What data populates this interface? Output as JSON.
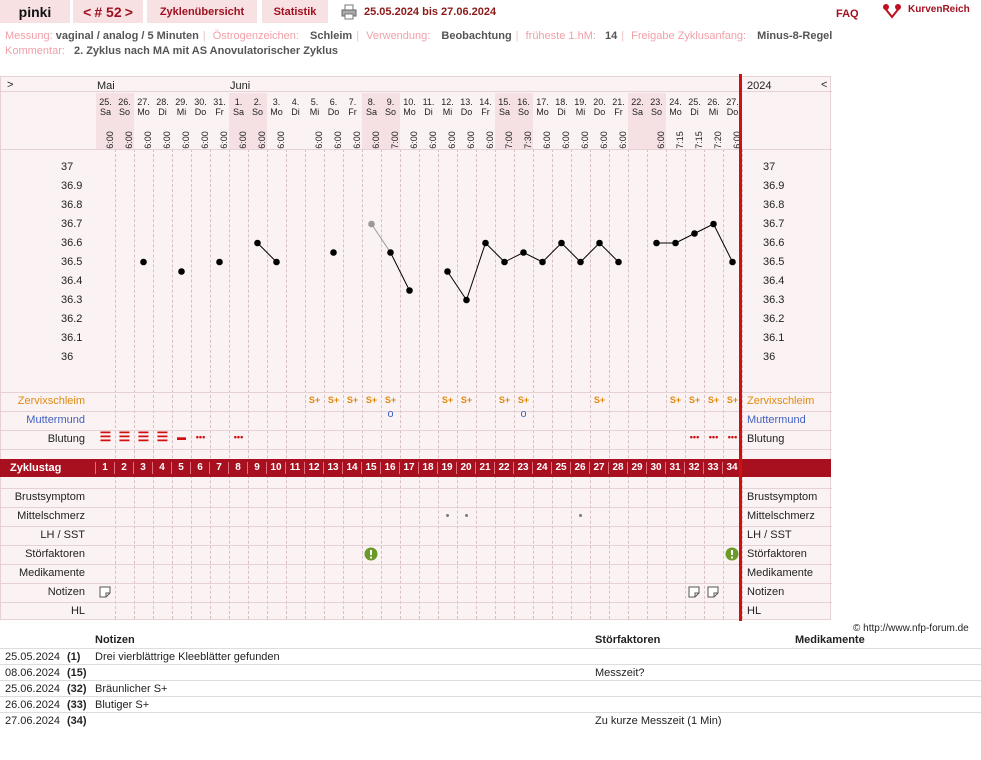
{
  "header": {
    "user": "pinki",
    "cycle_prev": "<",
    "cycle_label": "# 52",
    "cycle_next": ">",
    "tab_overview": "Zyklenübersicht",
    "tab_stats": "Statistik",
    "print_icon": "printer-icon",
    "date_range": "25.05.2024 bis 27.06.2024",
    "faq": "FAQ",
    "logo": "KurvenReich",
    "logo_icon": "kurvenreich-logo-icon"
  },
  "info": {
    "messung_label": "Messung:",
    "messung": "vaginal / analog / 5 Minuten",
    "oestro_label": "Östrogenzeichen:",
    "oestro": "Schleim",
    "verwendung_label": "Verwendung:",
    "verwendung": "Beobachtung",
    "fruehest_label": "früheste 1.hM:",
    "fruehest": "14",
    "freigabe_label": "Freigabe Zyklusanfang:",
    "freigabe": "Minus-8-Regel",
    "kommentar_label": "Kommentar:",
    "kommentar": "2. Zyklus nach MA mit AS  Anovulatorischer Zyklus"
  },
  "chart": {
    "nav_left": ">",
    "nav_right": "<",
    "year": "2024",
    "months": [
      {
        "label": "Mai",
        "day": 1
      },
      {
        "label": "Juni",
        "day": 8
      }
    ],
    "days": [
      {
        "d": "25.",
        "w": "Sa",
        "t": "6:00"
      },
      {
        "d": "26.",
        "w": "So",
        "t": "6:00"
      },
      {
        "d": "27.",
        "w": "Mo",
        "t": "6:00"
      },
      {
        "d": "28.",
        "w": "Di",
        "t": "6:00"
      },
      {
        "d": "29.",
        "w": "Mi",
        "t": "6:00"
      },
      {
        "d": "30.",
        "w": "Do",
        "t": "6:00"
      },
      {
        "d": "31.",
        "w": "Fr",
        "t": "6:00"
      },
      {
        "d": "1.",
        "w": "Sa",
        "t": "6:00"
      },
      {
        "d": "2.",
        "w": "So",
        "t": "6:00"
      },
      {
        "d": "3.",
        "w": "Mo",
        "t": "6:00"
      },
      {
        "d": "4.",
        "w": "Di",
        "t": ""
      },
      {
        "d": "5.",
        "w": "Mi",
        "t": "6:00"
      },
      {
        "d": "6.",
        "w": "Do",
        "t": "6:00"
      },
      {
        "d": "7.",
        "w": "Fr",
        "t": "6:00"
      },
      {
        "d": "8.",
        "w": "Sa",
        "t": "6:00"
      },
      {
        "d": "9.",
        "w": "So",
        "t": "7:00"
      },
      {
        "d": "10.",
        "w": "Mo",
        "t": "6:00"
      },
      {
        "d": "11.",
        "w": "Di",
        "t": "6:00"
      },
      {
        "d": "12.",
        "w": "Mi",
        "t": "6:00"
      },
      {
        "d": "13.",
        "w": "Do",
        "t": "6:00"
      },
      {
        "d": "14.",
        "w": "Fr",
        "t": "6:00"
      },
      {
        "d": "15.",
        "w": "Sa",
        "t": "7:00"
      },
      {
        "d": "16.",
        "w": "So",
        "t": "7:30"
      },
      {
        "d": "17.",
        "w": "Mo",
        "t": "6:00"
      },
      {
        "d": "18.",
        "w": "Di",
        "t": "6:00"
      },
      {
        "d": "19.",
        "w": "Mi",
        "t": "6:00"
      },
      {
        "d": "20.",
        "w": "Do",
        "t": "6:00"
      },
      {
        "d": "21.",
        "w": "Fr",
        "t": "6:00"
      },
      {
        "d": "22.",
        "w": "Sa",
        "t": ""
      },
      {
        "d": "23.",
        "w": "So",
        "t": "6:00"
      },
      {
        "d": "24.",
        "w": "Mo",
        "t": "7:15"
      },
      {
        "d": "25.",
        "w": "Di",
        "t": "7:15"
      },
      {
        "d": "26.",
        "w": "Mi",
        "t": "7:20"
      },
      {
        "d": "27.",
        "w": "Do",
        "t": "6:00"
      }
    ],
    "y_ticks": [
      "37",
      "36.9",
      "36.8",
      "36.7",
      "36.6",
      "36.5",
      "36.4",
      "36.3",
      "36.2",
      "36.1",
      "36"
    ],
    "temps": [
      null,
      null,
      36.5,
      null,
      36.45,
      null,
      36.5,
      null,
      36.6,
      36.5,
      null,
      null,
      36.55,
      null,
      36.7,
      36.55,
      36.35,
      null,
      36.45,
      36.3,
      36.6,
      36.5,
      36.55,
      36.5,
      36.6,
      36.5,
      36.6,
      36.5,
      null,
      36.6,
      36.6,
      36.65,
      36.7,
      36.5
    ],
    "excluded_days": [
      15
    ],
    "row_zervix": "Zervixschleim",
    "row_mumu": "Muttermund",
    "row_blutung": "Blutung",
    "zervix_days": [
      12,
      13,
      14,
      15,
      16,
      19,
      20,
      22,
      23,
      27,
      31,
      32,
      33,
      34
    ],
    "zervix_symbol": "S+",
    "mumu_days": [
      16,
      23
    ],
    "blutung": [
      3,
      3,
      3,
      3,
      2,
      1,
      0,
      1,
      0,
      0,
      0,
      0,
      0,
      0,
      0,
      0,
      0,
      0,
      0,
      0,
      0,
      0,
      0,
      0,
      0,
      0,
      0,
      0,
      0,
      0,
      0,
      1,
      1,
      1
    ],
    "zyklustag_label": "Zyklustag",
    "rows_bottom": [
      "Brustsymptom",
      "Mittelschmerz",
      "LH / SST",
      "Störfaktoren",
      "Medikamente",
      "Notizen",
      "HL"
    ],
    "mittelschmerz_days": [
      19,
      20,
      26
    ],
    "stoer_days": [
      15,
      34
    ],
    "notiz_days": [
      1,
      32,
      33
    ]
  },
  "copyright": "© http://www.nfp-forum.de",
  "notes": {
    "col_notizen": "Notizen",
    "col_stoer": "Störfaktoren",
    "col_medi": "Medikamente",
    "rows": [
      {
        "date": "25.05.2024",
        "day": "(1)",
        "note": "Drei vierblättrige Kleeblätter gefunden",
        "stoer": ""
      },
      {
        "date": "08.06.2024",
        "day": "(15)",
        "note": "",
        "stoer": "Messzeit?"
      },
      {
        "date": "25.06.2024",
        "day": "(32)",
        "note": "Bräunlicher S+",
        "stoer": ""
      },
      {
        "date": "26.06.2024",
        "day": "(33)",
        "note": "Blutiger S+",
        "stoer": ""
      },
      {
        "date": "27.06.2024",
        "day": "(34)",
        "note": "",
        "stoer": "Zu kurze Messzeit (1 Min)"
      }
    ]
  },
  "colors": {
    "accent": "#a81020",
    "tab_bg": "#f7e1e3",
    "zervix": "#e08a10",
    "mumu": "#4060c0",
    "blutung": "#d01010",
    "stoer": "#6a9a2a"
  }
}
